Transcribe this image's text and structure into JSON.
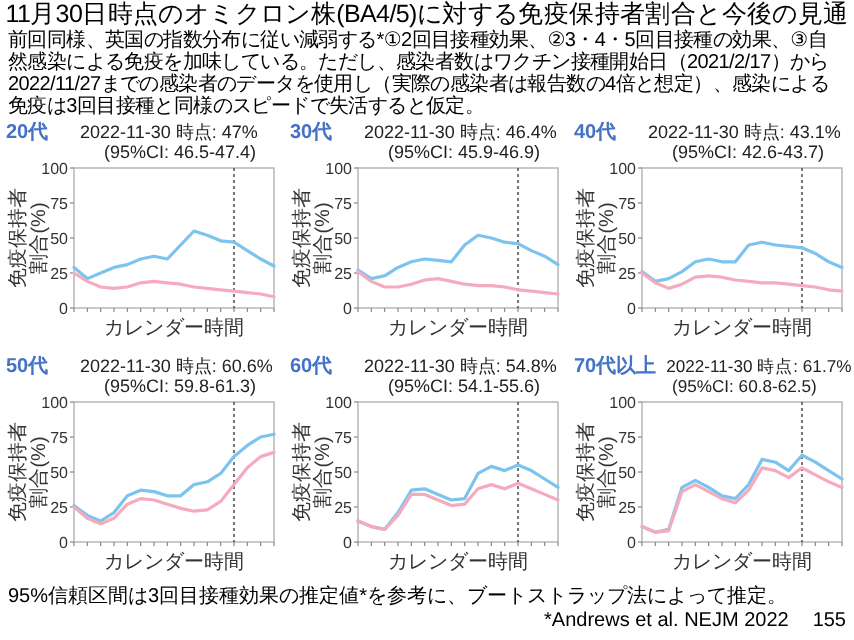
{
  "chart_data": [
    {
      "type": "other",
      "title": "11月30日時点のオミクロン株(BA4/5)に対する免疫保持者割合と今後の見通",
      "subtitle": "前回同様、英国の指数分布に従い減弱する*①2回目接種効果、②3・4・5回目接種の効果、③自然感染による免疫を加味している。ただし、感染者数はワクチン接種開始日（2021/2/17）から2022/11/27までの感染者のデータを使用し（実際の感染者は報告数の4倍と想定）、感染による免疫は3回目接種と同様のスピードで失活すると仮定。",
      "annotations": [
        "95%信頼区間は3回目接種効果の推定値*を参考に、ブートストラップ法によって推定。",
        "*Andrews et al. NEJM 2022",
        "155"
      ]
    },
    {
      "type": "line",
      "title": "20代",
      "subtitle": "2022-11-30 時点: 47% (95%CI: 46.5-47.4)",
      "xlabel": "カレンダー時間",
      "ylabel": "免疫保持者割合(%)",
      "categories": [
        null,
        null,
        null,
        null,
        null,
        null,
        null,
        null,
        null,
        null,
        null,
        null,
        null,
        null,
        null,
        null
      ],
      "ylim": [
        0,
        100
      ],
      "yticks": [
        0,
        25,
        50,
        75,
        100
      ],
      "series": [
        {
          "color": "#7cc4ee",
          "values": [
            29,
            21,
            25,
            29,
            31,
            35,
            37,
            35,
            45,
            55,
            52,
            48,
            47,
            41,
            35,
            30
          ]
        },
        {
          "color": "#f5aabd",
          "values": [
            25,
            19,
            15,
            14,
            15,
            18,
            19,
            18,
            17,
            15,
            14,
            13,
            12,
            11,
            10,
            8
          ]
        }
      ]
    },
    {
      "type": "line",
      "title": "30代",
      "subtitle": "2022-11-30 時点: 46.4% (95%CI: 45.9-46.9)",
      "xlabel": "カレンダー時間",
      "ylabel": "免疫保持者割合(%)",
      "categories": [
        null,
        null,
        null,
        null,
        null,
        null,
        null,
        null,
        null,
        null,
        null,
        null,
        null,
        null,
        null,
        null
      ],
      "ylim": [
        0,
        100
      ],
      "yticks": [
        0,
        25,
        50,
        75,
        100
      ],
      "series": [
        {
          "color": "#7cc4ee",
          "values": [
            27,
            21,
            23,
            29,
            33,
            35,
            34,
            33,
            45,
            52,
            50,
            47,
            46,
            41,
            37,
            31
          ]
        },
        {
          "color": "#f5aabd",
          "values": [
            26,
            19,
            15,
            15,
            17,
            20,
            21,
            19,
            17,
            16,
            16,
            15,
            13,
            12,
            11,
            10
          ]
        }
      ]
    },
    {
      "type": "line",
      "title": "40代",
      "subtitle": "2022-11-30 時点: 43.1% (95%CI: 42.6-43.7)",
      "xlabel": "カレンダー時間",
      "ylabel": "免疫保持者割合(%)",
      "categories": [
        null,
        null,
        null,
        null,
        null,
        null,
        null,
        null,
        null,
        null,
        null,
        null,
        null,
        null,
        null,
        null
      ],
      "ylim": [
        0,
        100
      ],
      "yticks": [
        0,
        25,
        50,
        75,
        100
      ],
      "series": [
        {
          "color": "#7cc4ee",
          "values": [
            26,
            19,
            21,
            26,
            33,
            35,
            33,
            33,
            45,
            47,
            45,
            44,
            43,
            39,
            33,
            29
          ]
        },
        {
          "color": "#f5aabd",
          "values": [
            25,
            18,
            14,
            17,
            22,
            23,
            22,
            20,
            19,
            18,
            18,
            17,
            16,
            15,
            13,
            12
          ]
        }
      ]
    },
    {
      "type": "line",
      "title": "50代",
      "subtitle": "2022-11-30 時点: 60.6% (95%CI: 59.8-61.3)",
      "xlabel": "カレンダー時間",
      "ylabel": "免疫保持者割合(%)",
      "categories": [
        null,
        null,
        null,
        null,
        null,
        null,
        null,
        null,
        null,
        null,
        null,
        null,
        null,
        null,
        null,
        null
      ],
      "ylim": [
        0,
        100
      ],
      "yticks": [
        0,
        25,
        50,
        75,
        100
      ],
      "series": [
        {
          "color": "#7cc4ee",
          "values": [
            26,
            19,
            15,
            21,
            33,
            37,
            36,
            33,
            33,
            41,
            43,
            49,
            61,
            69,
            75,
            77
          ]
        },
        {
          "color": "#f5aabd",
          "values": [
            25,
            17,
            13,
            17,
            27,
            31,
            30,
            27,
            24,
            22,
            23,
            29,
            41,
            53,
            61,
            64
          ]
        }
      ]
    },
    {
      "type": "line",
      "title": "60代",
      "subtitle": "2022-11-30 時点: 54.8% (95%CI: 54.1-55.6)",
      "xlabel": "カレンダー時間",
      "ylabel": "免疫保持者割合(%)",
      "categories": [
        null,
        null,
        null,
        null,
        null,
        null,
        null,
        null,
        null,
        null,
        null,
        null,
        null,
        null,
        null,
        null
      ],
      "ylim": [
        0,
        100
      ],
      "yticks": [
        0,
        25,
        50,
        75,
        100
      ],
      "series": [
        {
          "color": "#7cc4ee",
          "values": [
            15,
            11,
            9,
            21,
            37,
            38,
            34,
            30,
            31,
            49,
            54,
            51,
            55,
            51,
            45,
            39
          ]
        },
        {
          "color": "#f5aabd",
          "values": [
            15,
            11,
            9,
            19,
            34,
            34,
            30,
            26,
            27,
            38,
            41,
            38,
            42,
            38,
            34,
            30
          ]
        }
      ]
    },
    {
      "type": "line",
      "title": "70代以上",
      "subtitle": "2022-11-30 時点: 61.7% (95%CI: 60.8-62.5)",
      "xlabel": "カレンダー時間",
      "ylabel": "免疫保持者割合(%)",
      "categories": [
        null,
        null,
        null,
        null,
        null,
        null,
        null,
        null,
        null,
        null,
        null,
        null,
        null,
        null,
        null,
        null
      ],
      "ylim": [
        0,
        100
      ],
      "yticks": [
        0,
        25,
        50,
        75,
        100
      ],
      "series": [
        {
          "color": "#7cc4ee",
          "values": [
            11,
            7,
            9,
            39,
            44,
            39,
            33,
            31,
            41,
            59,
            57,
            51,
            62,
            57,
            51,
            45
          ]
        },
        {
          "color": "#f5aabd",
          "values": [
            11,
            7,
            8,
            36,
            41,
            36,
            31,
            28,
            37,
            53,
            51,
            46,
            53,
            48,
            43,
            39
          ]
        }
      ]
    }
  ]
}
